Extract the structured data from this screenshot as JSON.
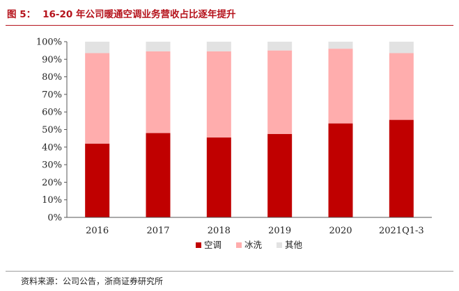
{
  "figure": {
    "label": "图 5：",
    "title": "16-20 年公司暖通空调业务营收占比逐年提升"
  },
  "source_text": "资料来源：公司公告，浙商证券研究所",
  "colors": {
    "title_red": "#b5121b",
    "series": [
      "#c00000",
      "#ffadad",
      "#e2e2e2"
    ]
  },
  "chart_data": {
    "type": "bar",
    "stacked": true,
    "categories": [
      "2016",
      "2017",
      "2018",
      "2019",
      "2020",
      "2021Q1-3"
    ],
    "series": [
      {
        "name": "空调",
        "values": [
          42,
          48,
          45.5,
          47.5,
          53.5,
          55.5
        ]
      },
      {
        "name": "冰洗",
        "values": [
          51.5,
          46.5,
          49,
          47.5,
          42.5,
          38
        ]
      },
      {
        "name": "其他",
        "values": [
          6.5,
          5.5,
          5.5,
          5,
          4,
          6.5
        ]
      }
    ],
    "ylim": [
      0,
      100
    ],
    "yticks": [
      0,
      10,
      20,
      30,
      40,
      50,
      60,
      70,
      80,
      90,
      100
    ],
    "ytick_labels": [
      "0%",
      "10%",
      "20%",
      "30%",
      "40%",
      "50%",
      "60%",
      "70%",
      "80%",
      "90%",
      "100%"
    ],
    "grid": false,
    "legend_position": "bottom"
  }
}
